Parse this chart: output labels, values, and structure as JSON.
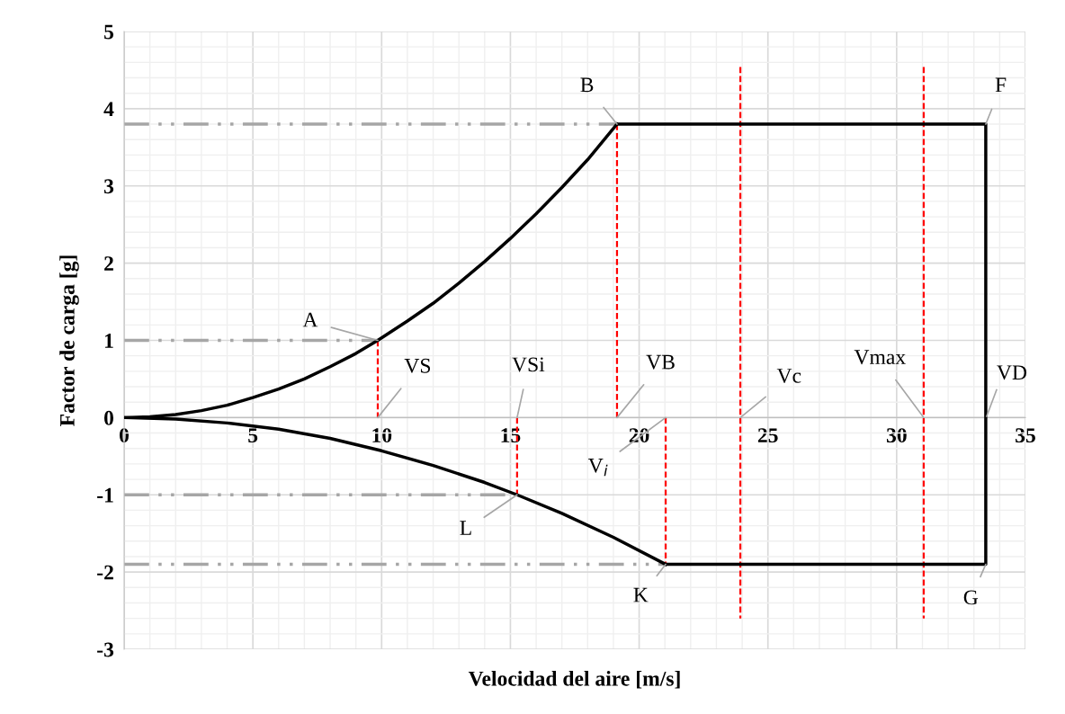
{
  "chart_data": {
    "type": "line",
    "xlabel": "Velocidad del aire [m/s]",
    "ylabel": "Factor de carga [g]",
    "xlim": [
      0,
      35
    ],
    "ylim": [
      -3,
      5
    ],
    "xticks": [
      0,
      5,
      10,
      15,
      20,
      25,
      30,
      35
    ],
    "yticks": [
      -3,
      -2,
      -1,
      0,
      1,
      2,
      3,
      4,
      5
    ],
    "grid": true,
    "legend": false,
    "marker": "none",
    "series": [
      {
        "color": "#000000",
        "line_style": "solid",
        "x": [
          0,
          1,
          2,
          3,
          4,
          5,
          6,
          7,
          8,
          9,
          9.85,
          11,
          12,
          13,
          14,
          15,
          16,
          17,
          18,
          19.14
        ],
        "values": [
          0,
          0.01,
          0.04,
          0.09,
          0.16,
          0.26,
          0.37,
          0.5,
          0.66,
          0.83,
          1,
          1.25,
          1.48,
          1.74,
          2.02,
          2.32,
          2.64,
          2.98,
          3.34,
          3.8
        ]
      },
      {
        "color": "#000000",
        "line_style": "solid",
        "x": [
          19.14,
          33.46,
          33.46,
          21.03
        ],
        "values": [
          3.8,
          3.8,
          -1.9,
          -1.9
        ]
      },
      {
        "color": "#000000",
        "line_style": "solid",
        "x": [
          0,
          2,
          4,
          6,
          8,
          10,
          12,
          14,
          15.26,
          17,
          19,
          21.03
        ],
        "values": [
          0,
          -0.02,
          -0.07,
          -0.15,
          -0.27,
          -0.43,
          -0.62,
          -0.84,
          -1,
          -1.24,
          -1.55,
          -1.9
        ]
      },
      {
        "color": "#a6a6a6",
        "line_style": "dashdot",
        "x": [
          0,
          19.14
        ],
        "values": [
          3.8,
          3.8
        ]
      },
      {
        "color": "#a6a6a6",
        "line_style": "dashdot",
        "x": [
          0,
          9.85
        ],
        "values": [
          1,
          1
        ]
      },
      {
        "color": "#a6a6a6",
        "line_style": "dashdot",
        "x": [
          0,
          15.26
        ],
        "values": [
          -1,
          -1
        ]
      },
      {
        "color": "#a6a6a6",
        "line_style": "dashdot",
        "x": [
          0,
          21.03
        ],
        "values": [
          -1.9,
          -1.9
        ]
      },
      {
        "color": "#ff0000",
        "line_style": "dashed",
        "x": [
          9.85,
          9.85
        ],
        "values": [
          1,
          0
        ]
      },
      {
        "color": "#ff0000",
        "line_style": "dashed",
        "x": [
          15.26,
          15.26
        ],
        "values": [
          0,
          -1
        ]
      },
      {
        "color": "#ff0000",
        "line_style": "dashed",
        "x": [
          19.14,
          19.14
        ],
        "values": [
          3.8,
          0
        ]
      },
      {
        "color": "#ff0000",
        "line_style": "dashed",
        "x": [
          21.03,
          21.03
        ],
        "values": [
          0,
          -1.9
        ]
      },
      {
        "color": "#ff0000",
        "line_style": "dashed",
        "x": [
          23.93,
          23.93
        ],
        "values": [
          4.54,
          -2.6
        ]
      },
      {
        "color": "#ff0000",
        "line_style": "dashed",
        "x": [
          31.05,
          31.05
        ],
        "values": [
          4.54,
          -2.6
        ]
      }
    ],
    "annotations": [
      {
        "text": "A",
        "x": 9.85,
        "y": 1
      },
      {
        "text": "B",
        "x": 19.14,
        "y": 3.8
      },
      {
        "text": "F",
        "x": 33.46,
        "y": 3.8
      },
      {
        "text": "G",
        "x": 33.46,
        "y": -1.9
      },
      {
        "text": "K",
        "x": 21.03,
        "y": -1.9
      },
      {
        "text": "L",
        "x": 15.26,
        "y": -1
      },
      {
        "text": "VS",
        "x": 9.85,
        "y": 0
      },
      {
        "text": "VSi",
        "x": 15.26,
        "y": 0
      },
      {
        "text": "VB",
        "x": 19.14,
        "y": 0
      },
      {
        "text": "V$_{i}$",
        "x": 21.03,
        "y": 0
      },
      {
        "text": "Vc",
        "x": 23.93,
        "y": 0
      },
      {
        "text": "Vmax",
        "x": 31.05,
        "y": 0
      },
      "VD"
    ]
  }
}
